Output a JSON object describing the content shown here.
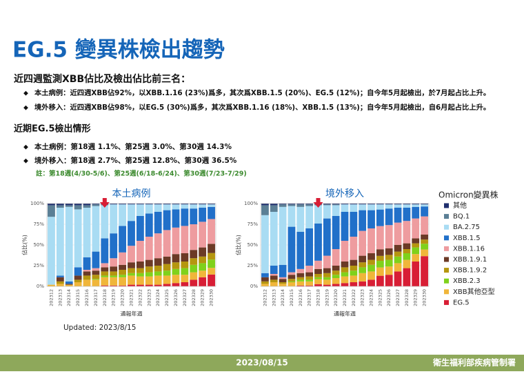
{
  "header": {
    "title": "EG.5 變異株檢出趨勢"
  },
  "sections": [
    {
      "heading": "近四週監測XBB佔比及檢出佔比前三名：",
      "bullets": [
        "本土病例：近四週XBB佔92%，以XBB.1.16 (23%)爲多，其次爲XBB.1.5 (20%)、EG.5 (12%)；自今年5月起檢出，於7月起占比上升。",
        "境外移入：近四週XBB佔98%，以EG.5 (30%)爲多，其次爲XBB.1.16 (18%)、XBB.1.5 (13%)；自今年5月起檢出，自6月起占比上升。"
      ]
    },
    {
      "heading": "近期EG.5檢出情形",
      "bullets": [
        "本土病例：第18週 1.1%、第25週 3.0%、第30週 14.3%",
        "境外移入：第18週 2.7%、第25週 12.8%、第30週 36.5%"
      ],
      "note": "註：第18週(4/30-5/6)、第25週(6/18-6/24)、第30週(7/23-7/29)"
    }
  ],
  "updated": "Updated: 2023/8/15",
  "footer": {
    "date": "2023/08/15",
    "org": "衛生福利部疾病管制署"
  },
  "chart_data": [
    {
      "type": "bar",
      "stacked": true,
      "title": "本土病例",
      "xlabel": "通報年週",
      "ylabel": "佔比(%)",
      "legend_title": "Omicron變異株",
      "categories": [
        "202312",
        "202313",
        "202314",
        "202315",
        "202316",
        "202317",
        "202318",
        "202319",
        "202320",
        "202321",
        "202322",
        "202323",
        "202324",
        "202325",
        "202326",
        "202327",
        "202328",
        "202329",
        "202330"
      ],
      "ylim": [
        0,
        100
      ],
      "yticks": [
        {
          "value": 0,
          "label": "0%"
        },
        {
          "value": 25,
          "label": "25%"
        },
        {
          "value": 50,
          "label": "50%"
        },
        {
          "value": 75,
          "label": "75%"
        },
        {
          "value": 100,
          "label": "100%"
        }
      ],
      "grid": true,
      "series": [
        {
          "name": "其他",
          "color": "#1f2f6e",
          "values": [
            2,
            2,
            2,
            2,
            2,
            1,
            1,
            1,
            1,
            1,
            1,
            1,
            1,
            1,
            1,
            1,
            1,
            1,
            1
          ]
        },
        {
          "name": "BQ.1",
          "color": "#5b7f95",
          "values": [
            14,
            3,
            2,
            5,
            3,
            2,
            1,
            0,
            0,
            0,
            0,
            0,
            0,
            0,
            0,
            0,
            0,
            0,
            0
          ]
        },
        {
          "name": "BA.2.75",
          "color": "#a9dcf3",
          "values": [
            82,
            82,
            90,
            70,
            60,
            55,
            40,
            35,
            26,
            20,
            14,
            11,
            9,
            7,
            6,
            5,
            5,
            4,
            3
          ]
        },
        {
          "name": "XBB.1.5",
          "color": "#2170c9",
          "values": [
            0,
            2,
            3,
            10,
            15,
            20,
            30,
            30,
            32,
            30,
            30,
            28,
            26,
            24,
            22,
            21,
            19,
            17,
            14.7
          ]
        },
        {
          "name": "XBB.1.16",
          "color": "#ee9c9f",
          "values": [
            0,
            0,
            0,
            0,
            2,
            3,
            5,
            10,
            15,
            20,
            25,
            28,
            30,
            32,
            32,
            33,
            31,
            31,
            30
          ]
        },
        {
          "name": "XBB.1.9.1",
          "color": "#6b3a26",
          "values": [
            0,
            5,
            1,
            5,
            5,
            5,
            5,
            6,
            6,
            7,
            8,
            8,
            9,
            9,
            10,
            10,
            10,
            11,
            11
          ]
        },
        {
          "name": "XBB.1.9.2",
          "color": "#b5960f",
          "values": [
            0,
            3,
            0,
            3,
            5,
            5,
            5,
            5,
            6,
            6,
            6,
            7,
            7,
            8,
            8,
            8,
            8,
            8,
            8
          ]
        },
        {
          "name": "XBB.2.3",
          "color": "#7fd11b",
          "values": [
            0,
            0,
            0,
            0,
            0,
            1,
            1.9,
            2,
            3,
            3,
            4,
            5,
            5,
            6,
            7,
            8,
            9,
            9,
            10
          ]
        },
        {
          "name": "XBB其他亞型",
          "color": "#f0b63a",
          "values": [
            2,
            3,
            2,
            5,
            8,
            8,
            10,
            10,
            10,
            11,
            10,
            10,
            11,
            10,
            10,
            9,
            9,
            8,
            8
          ]
        },
        {
          "name": "EG.5",
          "color": "#d81e35",
          "values": [
            0,
            0,
            0,
            0,
            0,
            0,
            1.1,
            1,
            1,
            2,
            2,
            2,
            2,
            3,
            4,
            5,
            8,
            11,
            14.3
          ]
        }
      ]
    },
    {
      "type": "bar",
      "stacked": true,
      "title": "境外移入",
      "xlabel": "通報年週",
      "ylabel": "佔比(%)",
      "categories": [
        "202312",
        "202313",
        "202314",
        "202315",
        "202316",
        "202317",
        "202318",
        "202319",
        "202320",
        "202321",
        "202322",
        "202323",
        "202324",
        "202325",
        "202326",
        "202327",
        "202328",
        "202329",
        "202330"
      ],
      "ylim": [
        0,
        100
      ],
      "yticks": [
        {
          "value": 0,
          "label": "0%"
        },
        {
          "value": 25,
          "label": "25%"
        },
        {
          "value": 50,
          "label": "50%"
        },
        {
          "value": 75,
          "label": "75%"
        },
        {
          "value": 100,
          "label": "100%"
        }
      ],
      "grid": true,
      "series": [
        {
          "color": "#1f2f6e",
          "values": [
            2,
            2,
            1,
            1,
            1,
            1,
            1,
            1,
            1,
            1,
            1,
            1,
            1,
            1,
            1,
            1,
            1,
            1,
            1
          ]
        },
        {
          "color": "#5b7f95",
          "values": [
            12,
            8,
            3,
            2,
            3,
            2,
            1,
            1,
            1,
            0,
            0,
            0,
            0,
            0,
            0,
            0,
            0,
            0,
            0
          ]
        },
        {
          "color": "#a9dcf3",
          "values": [
            70,
            65,
            70,
            25,
            30,
            27,
            22,
            16,
            13,
            9,
            9,
            7,
            7,
            6.2,
            5,
            4,
            4,
            3,
            2.5
          ]
        },
        {
          "color": "#2170c9",
          "values": [
            5,
            10,
            15,
            55,
            45,
            45,
            45,
            45,
            40,
            35,
            30,
            25,
            22,
            20,
            20,
            18,
            16,
            14,
            12
          ]
        },
        {
          "color": "#ee9c9f",
          "values": [
            0,
            2,
            2,
            3,
            5,
            8,
            10,
            15,
            20,
            25,
            28,
            30,
            30,
            28,
            28,
            27,
            27,
            24,
            22
          ]
        },
        {
          "color": "#6b3a26",
          "values": [
            5,
            5,
            4,
            5,
            5,
            5,
            6,
            6,
            6,
            7,
            7,
            8,
            8,
            8,
            8,
            8,
            7,
            6,
            6
          ]
        },
        {
          "color": "#b5960f",
          "values": [
            3,
            3,
            2,
            3,
            3,
            4,
            4,
            5,
            5,
            6,
            6,
            6,
            6,
            6,
            6,
            6,
            5,
            5,
            5
          ]
        },
        {
          "color": "#7fd11b",
          "values": [
            0,
            0,
            0,
            1,
            2,
            2,
            2.3,
            3,
            4,
            5,
            6,
            7,
            8,
            8,
            8,
            8,
            8,
            8,
            7
          ]
        },
        {
          "color": "#f0b63a",
          "values": [
            3,
            5,
            3,
            5,
            5,
            5,
            6,
            6,
            7,
            8,
            8,
            10,
            10,
            10,
            10,
            10,
            10,
            9,
            8
          ]
        },
        {
          "color": "#d81e35",
          "values": [
            0,
            0,
            0,
            0,
            1,
            1,
            2.7,
            2,
            3,
            4,
            5,
            6,
            8,
            12.8,
            14,
            18,
            22,
            30,
            36.5
          ]
        }
      ]
    }
  ]
}
